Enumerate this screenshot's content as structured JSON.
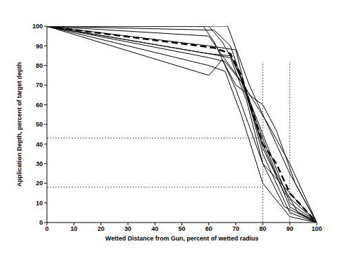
{
  "chart_data": {
    "type": "line",
    "x_label": "Wetted Distance from Gun, percent of wetted radius",
    "y_label": "Application Depth, percent of target depth",
    "xlim": [
      0,
      100
    ],
    "ylim": [
      0,
      100
    ],
    "xticks": [
      0,
      10,
      20,
      30,
      40,
      50,
      60,
      70,
      80,
      90,
      100
    ],
    "yticks": [
      0,
      10,
      20,
      30,
      40,
      50,
      60,
      70,
      80,
      90,
      100
    ],
    "grid": false,
    "series": [
      {
        "color": "#000000",
        "line_style": "solid",
        "x": [
          0,
          67,
          75,
          80,
          90,
          100
        ],
        "values": [
          100,
          100,
          70,
          55,
          25,
          0
        ]
      },
      {
        "color": "#000000",
        "line_style": "solid",
        "x": [
          0,
          60,
          65,
          70,
          80,
          90,
          100
        ],
        "values": [
          100,
          100,
          92,
          80,
          45,
          10,
          0
        ]
      },
      {
        "color": "#000000",
        "line_style": "solid",
        "x": [
          0,
          60,
          65,
          72,
          80,
          90,
          100
        ],
        "values": [
          100,
          95,
          85,
          72,
          40,
          8,
          0
        ]
      },
      {
        "color": "#000000",
        "line_style": "solid",
        "x": [
          0,
          60,
          70,
          75,
          80,
          90,
          100
        ],
        "values": [
          100,
          90,
          88,
          60,
          35,
          5,
          0
        ]
      },
      {
        "color": "#000000",
        "line_style": "solid",
        "x": [
          0,
          60,
          68,
          74,
          80,
          88,
          100
        ],
        "values": [
          100,
          86,
          84,
          62,
          30,
          8,
          0
        ]
      },
      {
        "color": "#000000",
        "line_style": "solid",
        "x": [
          0,
          60,
          66,
          72,
          80,
          90,
          100
        ],
        "values": [
          100,
          80,
          77,
          55,
          20,
          3,
          0
        ]
      },
      {
        "color": "#000000",
        "line_style": "solid",
        "x": [
          0,
          60,
          65,
          70,
          80,
          85,
          92,
          100
        ],
        "values": [
          100,
          75,
          83,
          70,
          60,
          47,
          20,
          0
        ]
      },
      {
        "color": "#000000",
        "line_style": "solid",
        "x": [
          0,
          60,
          66,
          73,
          82,
          90,
          100
        ],
        "values": [
          100,
          84,
          82,
          70,
          50,
          30,
          0
        ]
      },
      {
        "color": "#000000",
        "line_style": "solid",
        "x": [
          0,
          62,
          68,
          78,
          85,
          93,
          100
        ],
        "values": [
          100,
          98,
          90,
          50,
          25,
          5,
          0
        ]
      },
      {
        "color": "#000000",
        "line_style": "solid",
        "x": [
          0,
          58,
          62,
          70,
          80,
          90,
          100
        ],
        "values": [
          100,
          100,
          92,
          68,
          30,
          15,
          0
        ]
      },
      {
        "color": "#000000",
        "line_style": "solid",
        "x": [
          0,
          60,
          68,
          73,
          80,
          88,
          100
        ],
        "values": [
          100,
          86,
          85,
          70,
          38,
          15,
          0
        ]
      },
      {
        "color": "#000000",
        "line_style": "dashed",
        "x": [
          0,
          62,
          68,
          72,
          80,
          85,
          90,
          100
        ],
        "values": [
          100,
          89,
          86,
          75,
          40,
          30,
          15,
          0
        ]
      },
      {
        "color": "#555555",
        "line_style": "dotted",
        "x": [
          80,
          80
        ],
        "values": [
          0,
          82
        ]
      },
      {
        "color": "#555555",
        "line_style": "dotted",
        "x": [
          90,
          90
        ],
        "values": [
          0,
          82
        ]
      },
      {
        "color": "#555555",
        "line_style": "dotted",
        "x": [
          0,
          80
        ],
        "values": [
          43,
          43
        ]
      },
      {
        "color": "#555555",
        "line_style": "dotted",
        "x": [
          0,
          80
        ],
        "values": [
          18,
          18
        ]
      }
    ]
  }
}
